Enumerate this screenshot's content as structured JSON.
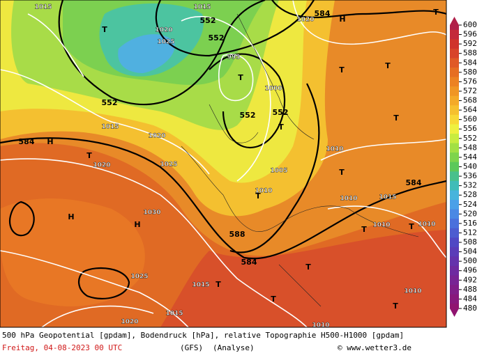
{
  "caption": {
    "line1": "500 hPa Geopotential [gpdam], Bodendruck [hPa], relative Topographie H500-H1000 [gpdam]",
    "date": "Freitag, 04-08-2023  00 UTC",
    "model": "(GFS)",
    "run": "(Analyse)",
    "credit": "© www.wetter3.de"
  },
  "colorbar": {
    "ticks": [
      600,
      596,
      592,
      588,
      584,
      580,
      576,
      572,
      568,
      564,
      560,
      556,
      552,
      548,
      544,
      540,
      536,
      532,
      528,
      524,
      520,
      516,
      512,
      508,
      504,
      500,
      496,
      492,
      488,
      484,
      480
    ],
    "colors": [
      "#b0204a",
      "#c42a3a",
      "#d0342c",
      "#d8442a",
      "#e05a26",
      "#e66e22",
      "#ec8222",
      "#f09624",
      "#f4aa28",
      "#f6c02e",
      "#f8d836",
      "#eef040",
      "#c8ec40",
      "#a2e044",
      "#7ed44c",
      "#5cc85a",
      "#48c08c",
      "#40bcb8",
      "#48b4dc",
      "#4aa0e8",
      "#4a88e4",
      "#4a70dc",
      "#4c5cd0",
      "#5048c4",
      "#5a3cb8",
      "#6432ac",
      "#6e2aa0",
      "#782494",
      "#801e88",
      "#88187c",
      "#901470"
    ]
  },
  "map_labels": [
    "1015",
    "1015",
    "T",
    "1020",
    "552",
    "552",
    "1025",
    "995",
    "T",
    "1000",
    "552",
    "552",
    "552",
    "T",
    "1015",
    "1020",
    "584",
    "H",
    "T",
    "1020",
    "1025",
    "1005",
    "1010",
    "T",
    "584",
    "1010",
    "T",
    "H",
    "H",
    "1030",
    "588",
    "584",
    "T",
    "1025",
    "1015",
    "T",
    "T",
    "1010",
    "1020",
    "1015",
    "1010",
    "T",
    "T",
    "H",
    "584",
    "1020",
    "T",
    "T",
    "T",
    "T",
    "T",
    "1010",
    "1010",
    "1010",
    "1015"
  ]
}
